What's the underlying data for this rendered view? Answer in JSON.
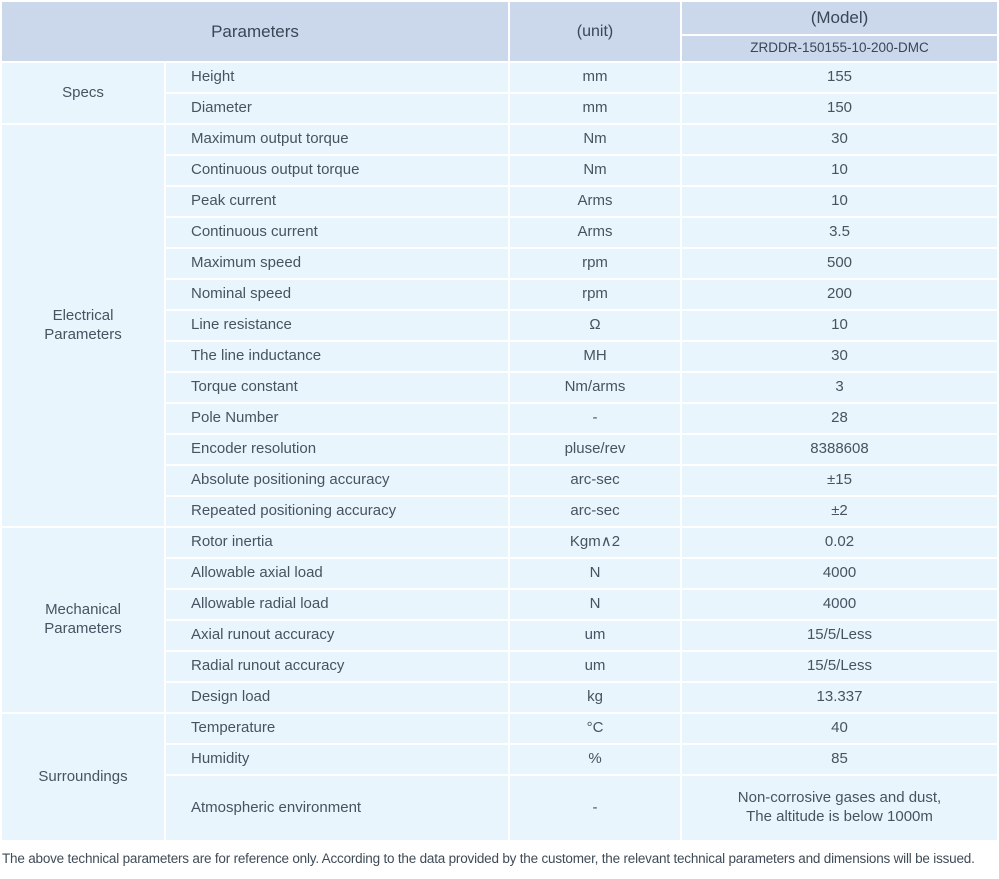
{
  "header": {
    "parameters_label": "Parameters",
    "unit_label": "(unit)",
    "model_label": "(Model)",
    "model_number": "ZRDDR-150155-10-200-DMC"
  },
  "sections": [
    {
      "name": "Specs",
      "rows": [
        {
          "parameter": "Height",
          "unit": "mm",
          "value": "155"
        },
        {
          "parameter": "Diameter",
          "unit": "mm",
          "value": "150"
        }
      ]
    },
    {
      "name": "Electrical\nParameters",
      "rows": [
        {
          "parameter": "Maximum output torque",
          "unit": "Nm",
          "value": "30"
        },
        {
          "parameter": "Continuous output torque",
          "unit": "Nm",
          "value": "10"
        },
        {
          "parameter": "Peak current",
          "unit": "Arms",
          "value": "10"
        },
        {
          "parameter": "Continuous current",
          "unit": "Arms",
          "value": "3.5"
        },
        {
          "parameter": "Maximum speed",
          "unit": "rpm",
          "value": "500"
        },
        {
          "parameter": "Nominal speed",
          "unit": "rpm",
          "value": "200"
        },
        {
          "parameter": "Line resistance",
          "unit": "Ω",
          "value": "10"
        },
        {
          "parameter": "The line inductance",
          "unit": "MH",
          "value": "30"
        },
        {
          "parameter": "Torque constant",
          "unit": "Nm/arms",
          "value": "3"
        },
        {
          "parameter": "Pole Number",
          "unit": "-",
          "value": "28"
        },
        {
          "parameter": "Encoder resolution",
          "unit": "pluse/rev",
          "value": "8388608"
        },
        {
          "parameter": "Absolute positioning accuracy",
          "unit": "arc-sec",
          "value": "±15"
        },
        {
          "parameter": "Repeated positioning accuracy",
          "unit": "arc-sec",
          "value": "±2"
        }
      ]
    },
    {
      "name": "Mechanical\nParameters",
      "rows": [
        {
          "parameter": "Rotor inertia",
          "unit": "Kgm∧2",
          "value": "0.02"
        },
        {
          "parameter": "Allowable axial load",
          "unit": "N",
          "value": "4000"
        },
        {
          "parameter": "Allowable radial load",
          "unit": "N",
          "value": "4000"
        },
        {
          "parameter": "Axial runout accuracy",
          "unit": "um",
          "value": "15/5/Less"
        },
        {
          "parameter": "Radial runout accuracy",
          "unit": "um",
          "value": "15/5/Less"
        },
        {
          "parameter": "Design load",
          "unit": "kg",
          "value": "13.337"
        }
      ]
    },
    {
      "name": "Surroundings",
      "rows": [
        {
          "parameter": "Temperature",
          "unit": "°C",
          "value": "40"
        },
        {
          "parameter": "Humidity",
          "unit": "%",
          "value": "85"
        },
        {
          "parameter": "Atmospheric environment",
          "unit": "-",
          "value": "Non-corrosive gases and dust,\nThe altitude is below 1000m",
          "tall": true
        }
      ]
    }
  ],
  "footer": {
    "note": "The above technical parameters are for reference only. According to the data provided by the customer, the relevant technical parameters and dimensions will be issued."
  },
  "colors": {
    "header_bg": "#cbd8ec",
    "cell_bg": "#e8f5fd",
    "text_color": "#475360"
  }
}
